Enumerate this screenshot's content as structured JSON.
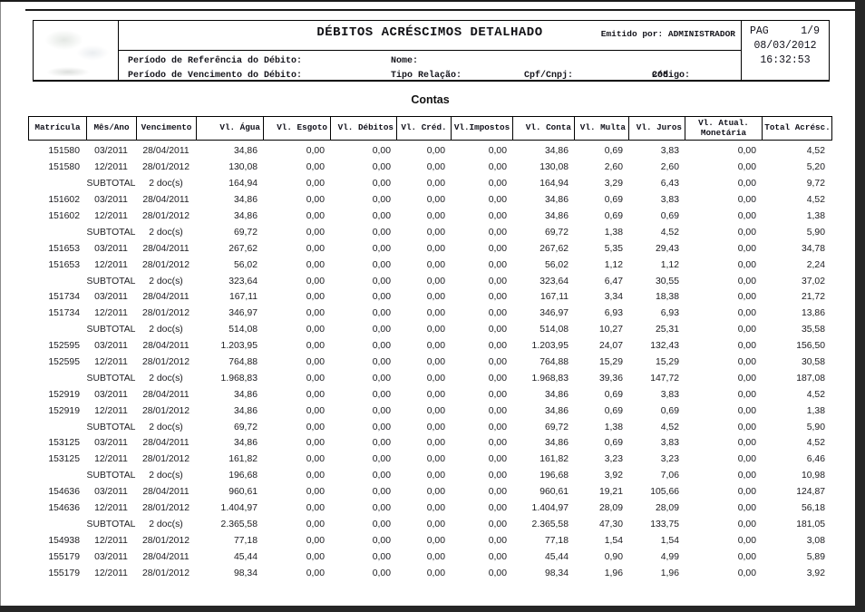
{
  "colors": {
    "page_bg": "#ffffff",
    "text": "#141414",
    "frame": "#262626"
  },
  "report_header": {
    "title": "DÉBITOS ACRÉSCIMOS DETALHADO",
    "emitted_by_label": "Emitido por:",
    "emitted_by_value": "ADMINISTRADOR",
    "page_label": "PAG",
    "page_value": "1/9",
    "date": "08/03/2012",
    "time": "16:32:53",
    "filters": {
      "ref_period_label": "Período de Referência do Débito:",
      "due_period_label": "Período de Vencimento do Débito:",
      "name_label": "Nome:",
      "relation_type_label": "Tipo Relação:",
      "cpf_label": "Cpf/Cnpj:",
      "code_label": "Código:",
      "code_value": "205"
    }
  },
  "table": {
    "section_title": "Contas",
    "columns": [
      "Matrícula",
      "Mês/Ano",
      "Vencimento",
      "Vl. Água",
      "Vl. Esgoto",
      "Vl. Débitos",
      "Vl. Créd.",
      "Vl.Impostos",
      "Vl. Conta",
      "Vl. Multa",
      "Vl. Juros",
      "Vl. Atual.\nMonetária",
      "Total Acrésc."
    ],
    "rows": [
      [
        "151580",
        "03/2011",
        "28/04/2011",
        "34,86",
        "0,00",
        "0,00",
        "0,00",
        "0,00",
        "34,86",
        "0,69",
        "3,83",
        "0,00",
        "4,52"
      ],
      [
        "151580",
        "12/2011",
        "28/01/2012",
        "130,08",
        "0,00",
        "0,00",
        "0,00",
        "0,00",
        "130,08",
        "2,60",
        "2,60",
        "0,00",
        "5,20"
      ],
      [
        "",
        "SUBTOTAL",
        "2 doc(s)",
        "164,94",
        "0,00",
        "0,00",
        "0,00",
        "0,00",
        "164,94",
        "3,29",
        "6,43",
        "0,00",
        "9,72"
      ],
      [
        "151602",
        "03/2011",
        "28/04/2011",
        "34,86",
        "0,00",
        "0,00",
        "0,00",
        "0,00",
        "34,86",
        "0,69",
        "3,83",
        "0,00",
        "4,52"
      ],
      [
        "151602",
        "12/2011",
        "28/01/2012",
        "34,86",
        "0,00",
        "0,00",
        "0,00",
        "0,00",
        "34,86",
        "0,69",
        "0,69",
        "0,00",
        "1,38"
      ],
      [
        "",
        "SUBTOTAL",
        "2 doc(s)",
        "69,72",
        "0,00",
        "0,00",
        "0,00",
        "0,00",
        "69,72",
        "1,38",
        "4,52",
        "0,00",
        "5,90"
      ],
      [
        "151653",
        "03/2011",
        "28/04/2011",
        "267,62",
        "0,00",
        "0,00",
        "0,00",
        "0,00",
        "267,62",
        "5,35",
        "29,43",
        "0,00",
        "34,78"
      ],
      [
        "151653",
        "12/2011",
        "28/01/2012",
        "56,02",
        "0,00",
        "0,00",
        "0,00",
        "0,00",
        "56,02",
        "1,12",
        "1,12",
        "0,00",
        "2,24"
      ],
      [
        "",
        "SUBTOTAL",
        "2 doc(s)",
        "323,64",
        "0,00",
        "0,00",
        "0,00",
        "0,00",
        "323,64",
        "6,47",
        "30,55",
        "0,00",
        "37,02"
      ],
      [
        "151734",
        "03/2011",
        "28/04/2011",
        "167,11",
        "0,00",
        "0,00",
        "0,00",
        "0,00",
        "167,11",
        "3,34",
        "18,38",
        "0,00",
        "21,72"
      ],
      [
        "151734",
        "12/2011",
        "28/01/2012",
        "346,97",
        "0,00",
        "0,00",
        "0,00",
        "0,00",
        "346,97",
        "6,93",
        "6,93",
        "0,00",
        "13,86"
      ],
      [
        "",
        "SUBTOTAL",
        "2 doc(s)",
        "514,08",
        "0,00",
        "0,00",
        "0,00",
        "0,00",
        "514,08",
        "10,27",
        "25,31",
        "0,00",
        "35,58"
      ],
      [
        "152595",
        "03/2011",
        "28/04/2011",
        "1.203,95",
        "0,00",
        "0,00",
        "0,00",
        "0,00",
        "1.203,95",
        "24,07",
        "132,43",
        "0,00",
        "156,50"
      ],
      [
        "152595",
        "12/2011",
        "28/01/2012",
        "764,88",
        "0,00",
        "0,00",
        "0,00",
        "0,00",
        "764,88",
        "15,29",
        "15,29",
        "0,00",
        "30,58"
      ],
      [
        "",
        "SUBTOTAL",
        "2 doc(s)",
        "1.968,83",
        "0,00",
        "0,00",
        "0,00",
        "0,00",
        "1.968,83",
        "39,36",
        "147,72",
        "0,00",
        "187,08"
      ],
      [
        "152919",
        "03/2011",
        "28/04/2011",
        "34,86",
        "0,00",
        "0,00",
        "0,00",
        "0,00",
        "34,86",
        "0,69",
        "3,83",
        "0,00",
        "4,52"
      ],
      [
        "152919",
        "12/2011",
        "28/01/2012",
        "34,86",
        "0,00",
        "0,00",
        "0,00",
        "0,00",
        "34,86",
        "0,69",
        "0,69",
        "0,00",
        "1,38"
      ],
      [
        "",
        "SUBTOTAL",
        "2 doc(s)",
        "69,72",
        "0,00",
        "0,00",
        "0,00",
        "0,00",
        "69,72",
        "1,38",
        "4,52",
        "0,00",
        "5,90"
      ],
      [
        "153125",
        "03/2011",
        "28/04/2011",
        "34,86",
        "0,00",
        "0,00",
        "0,00",
        "0,00",
        "34,86",
        "0,69",
        "3,83",
        "0,00",
        "4,52"
      ],
      [
        "153125",
        "12/2011",
        "28/01/2012",
        "161,82",
        "0,00",
        "0,00",
        "0,00",
        "0,00",
        "161,82",
        "3,23",
        "3,23",
        "0,00",
        "6,46"
      ],
      [
        "",
        "SUBTOTAL",
        "2 doc(s)",
        "196,68",
        "0,00",
        "0,00",
        "0,00",
        "0,00",
        "196,68",
        "3,92",
        "7,06",
        "0,00",
        "10,98"
      ],
      [
        "154636",
        "03/2011",
        "28/04/2011",
        "960,61",
        "0,00",
        "0,00",
        "0,00",
        "0,00",
        "960,61",
        "19,21",
        "105,66",
        "0,00",
        "124,87"
      ],
      [
        "154636",
        "12/2011",
        "28/01/2012",
        "1.404,97",
        "0,00",
        "0,00",
        "0,00",
        "0,00",
        "1.404,97",
        "28,09",
        "28,09",
        "0,00",
        "56,18"
      ],
      [
        "",
        "SUBTOTAL",
        "2 doc(s)",
        "2.365,58",
        "0,00",
        "0,00",
        "0,00",
        "0,00",
        "2.365,58",
        "47,30",
        "133,75",
        "0,00",
        "181,05"
      ],
      [
        "154938",
        "12/2011",
        "28/01/2012",
        "77,18",
        "0,00",
        "0,00",
        "0,00",
        "0,00",
        "77,18",
        "1,54",
        "1,54",
        "0,00",
        "3,08"
      ],
      [
        "155179",
        "03/2011",
        "28/04/2011",
        "45,44",
        "0,00",
        "0,00",
        "0,00",
        "0,00",
        "45,44",
        "0,90",
        "4,99",
        "0,00",
        "5,89"
      ],
      [
        "155179",
        "12/2011",
        "28/01/2012",
        "98,34",
        "0,00",
        "0,00",
        "0,00",
        "0,00",
        "98,34",
        "1,96",
        "1,96",
        "0,00",
        "3,92"
      ]
    ]
  }
}
